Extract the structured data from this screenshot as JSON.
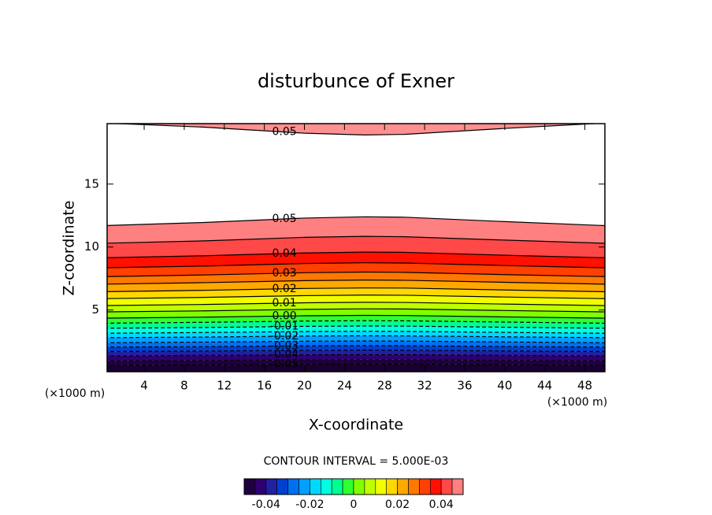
{
  "chart_data": {
    "type": "contour",
    "title": "disturbunce of Exner",
    "xlabel": "X-coordinate",
    "ylabel": "Z-coordinate",
    "x_unit": "(×1000 m)",
    "y_unit": "(×1000 m)",
    "xlim": [
      0.3,
      50
    ],
    "ylim": [
      0.1,
      19.8
    ],
    "xticks": [
      4,
      8,
      12,
      16,
      20,
      24,
      28,
      32,
      36,
      40,
      44,
      48
    ],
    "yticks": [
      5,
      10,
      15
    ],
    "x": [
      0,
      10,
      20,
      26,
      30,
      40,
      50
    ],
    "contours": [
      {
        "level": -0.05,
        "label": "-0.05",
        "z": [
          0.6,
          0.64,
          0.69,
          0.7,
          0.7,
          0.65,
          0.6
        ]
      },
      {
        "level": -0.045,
        "z": [
          0.95,
          0.99,
          1.04,
          1.05,
          1.05,
          1.0,
          0.95
        ]
      },
      {
        "level": -0.04,
        "label": "-0.04",
        "z": [
          1.35,
          1.39,
          1.44,
          1.45,
          1.45,
          1.4,
          1.35
        ]
      },
      {
        "level": -0.035,
        "z": [
          1.7,
          1.74,
          1.8,
          1.82,
          1.81,
          1.75,
          1.7
        ]
      },
      {
        "level": -0.03,
        "label": "-0.03",
        "z": [
          2.05,
          2.09,
          2.15,
          2.17,
          2.16,
          2.1,
          2.05
        ]
      },
      {
        "level": -0.025,
        "z": [
          2.4,
          2.45,
          2.52,
          2.54,
          2.53,
          2.46,
          2.4
        ]
      },
      {
        "level": -0.02,
        "label": "-0.02",
        "z": [
          2.8,
          2.85,
          2.93,
          2.95,
          2.94,
          2.87,
          2.8
        ]
      },
      {
        "level": -0.015,
        "z": [
          3.15,
          3.21,
          3.29,
          3.31,
          3.3,
          3.22,
          3.15
        ]
      },
      {
        "level": -0.01,
        "label": "-0.01",
        "z": [
          3.55,
          3.61,
          3.7,
          3.73,
          3.72,
          3.63,
          3.55
        ]
      },
      {
        "level": -0.005,
        "z": [
          3.95,
          4.02,
          4.12,
          4.15,
          4.14,
          4.04,
          3.95
        ]
      },
      {
        "level": 0,
        "label": "0.00",
        "z": [
          4.35,
          4.43,
          4.54,
          4.57,
          4.56,
          4.45,
          4.35
        ]
      },
      {
        "level": 0.005,
        "z": [
          4.85,
          4.93,
          5.05,
          5.09,
          5.08,
          4.96,
          4.85
        ]
      },
      {
        "level": 0.01,
        "label": "0.01",
        "z": [
          5.35,
          5.44,
          5.57,
          5.61,
          5.6,
          5.47,
          5.35
        ]
      },
      {
        "level": 0.015,
        "z": [
          5.9,
          6.0,
          6.14,
          6.18,
          6.17,
          6.03,
          5.9
        ]
      },
      {
        "level": 0.02,
        "label": "0.02",
        "z": [
          6.45,
          6.56,
          6.71,
          6.75,
          6.74,
          6.59,
          6.45
        ]
      },
      {
        "level": 0.025,
        "z": [
          7.05,
          7.17,
          7.33,
          7.38,
          7.36,
          7.2,
          7.05
        ]
      },
      {
        "level": 0.03,
        "label": "0.03",
        "z": [
          7.65,
          7.78,
          7.96,
          8.01,
          7.99,
          7.81,
          7.65
        ]
      },
      {
        "level": 0.035,
        "z": [
          8.35,
          8.49,
          8.69,
          8.75,
          8.73,
          8.53,
          8.35
        ]
      },
      {
        "level": 0.04,
        "label": "0.04",
        "z": [
          9.15,
          9.31,
          9.53,
          9.6,
          9.58,
          9.35,
          9.15
        ]
      },
      {
        "level": 0.045,
        "z": [
          10.3,
          10.49,
          10.77,
          10.85,
          10.82,
          10.55,
          10.3
        ]
      },
      {
        "level": 0.05,
        "label": "0.05",
        "z": [
          11.7,
          11.95,
          12.3,
          12.4,
          12.37,
          12.02,
          11.7
        ]
      }
    ],
    "upper_contour": {
      "level": 0.05,
      "label": "0.05",
      "z": [
        19.85,
        19.52,
        19.04,
        18.9,
        18.95,
        19.42,
        19.85
      ]
    },
    "upper_color": "#ff9090",
    "below_color": "#180030",
    "colors": [
      "#200040",
      "#300070",
      "#2020a0",
      "#0040d0",
      "#0070f0",
      "#00a0ff",
      "#00d8ff",
      "#00ffe0",
      "#00ff90",
      "#30ff30",
      "#80ff00",
      "#c0ff00",
      "#f0ff00",
      "#ffd800",
      "#ffa800",
      "#ff7800",
      "#ff4000",
      "#ff1000",
      "#ff4848",
      "#ff8080"
    ],
    "contour_interval_label": "CONTOUR INTERVAL = 5.000E-03",
    "colorbar_lim": [
      -0.05,
      0.05
    ],
    "colorbar_ticks": [
      -0.04,
      -0.02,
      0,
      0.02,
      0.04
    ]
  }
}
